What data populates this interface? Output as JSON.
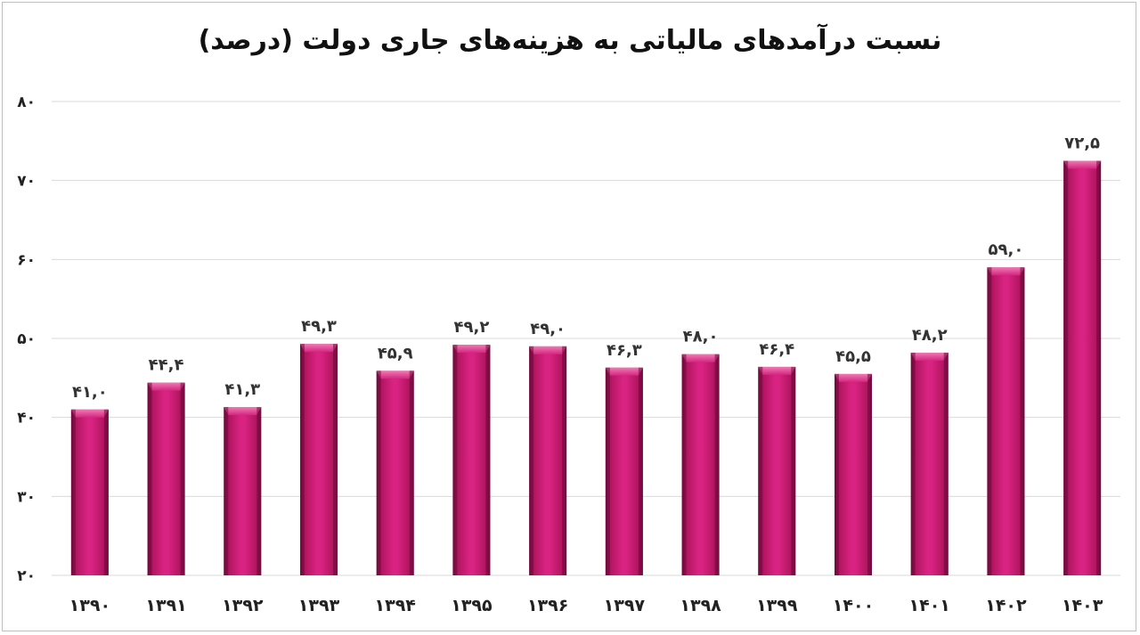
{
  "chart_data": {
    "type": "bar",
    "title": "نسبت درآمدهای مالیاتی به هزینه‌های جاری دولت (درصد)",
    "categories": [
      "۱۳۹۰",
      "۱۳۹۱",
      "۱۳۹۲",
      "۱۳۹۳",
      "۱۳۹۴",
      "۱۳۹۵",
      "۱۳۹۶",
      "۱۳۹۷",
      "۱۳۹۸",
      "۱۳۹۹",
      "۱۴۰۰",
      "۱۴۰۱",
      "۱۴۰۲",
      "۱۴۰۳"
    ],
    "values": [
      41.0,
      44.4,
      41.3,
      49.3,
      45.9,
      49.2,
      49.0,
      46.3,
      48.0,
      46.4,
      45.5,
      48.2,
      59.0,
      72.5
    ],
    "data_labels": [
      "۴۱,۰",
      "۴۴,۴",
      "۴۱,۳",
      "۴۹,۳",
      "۴۵,۹",
      "۴۹,۲",
      "۴۹,۰",
      "۴۶,۳",
      "۴۸,۰",
      "۴۶,۴",
      "۴۵,۵",
      "۴۸,۲",
      "۵۹,۰",
      "۷۲,۵"
    ],
    "ylim": [
      20,
      80
    ],
    "yticks": [
      20,
      30,
      40,
      50,
      60,
      70,
      80
    ],
    "ytick_labels": [
      "۲۰",
      "۳۰",
      "۴۰",
      "۵۰",
      "۶۰",
      "۷۰",
      "۸۰"
    ],
    "grid": true,
    "legend": "none",
    "colors": {
      "bar": "#cc1a75",
      "bar_light": "#e8559d",
      "bar_dark": "#8e0f4f",
      "grid": "#d9d9d9"
    }
  }
}
